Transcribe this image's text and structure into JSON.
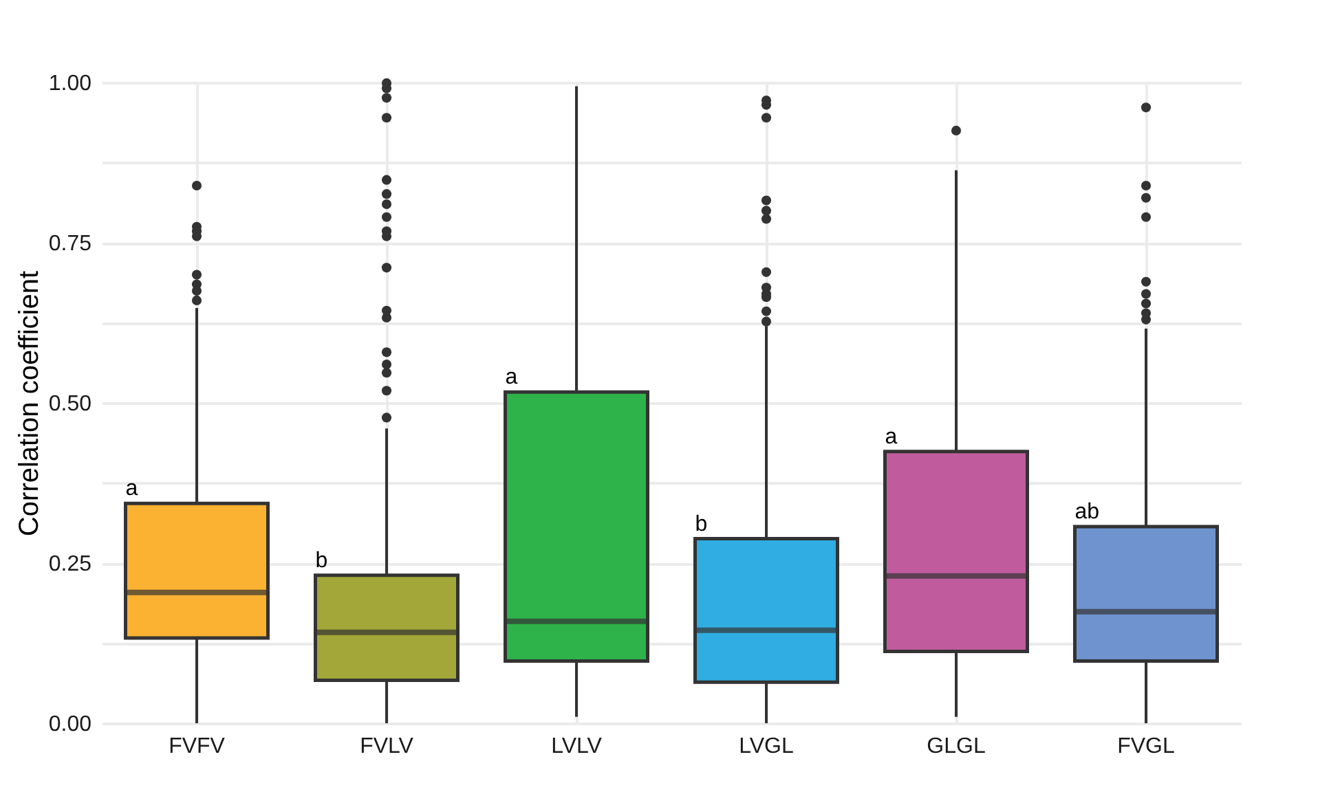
{
  "chart_data": {
    "type": "box",
    "ylabel": "Correlation coefficient",
    "categories": [
      "FVFV",
      "FVLV",
      "LVLV",
      "LVGL",
      "GLGL",
      "FVGL"
    ],
    "colors": [
      "#fbb131",
      "#a3a638",
      "#2db34a",
      "#30ade2",
      "#c05c9e",
      "#6e93cf"
    ],
    "boxes": [
      {
        "low": 0,
        "q1": 0.133,
        "median": 0.204,
        "q3": 0.343,
        "high": 0.648,
        "outliers": [
          0.839,
          0.775,
          0.768,
          0.76,
          0.7,
          0.685,
          0.675,
          0.66
        ]
      },
      {
        "low": 0,
        "q1": 0.067,
        "median": 0.142,
        "q3": 0.231,
        "high": 0.46,
        "outliers": [
          0.999,
          0.991,
          0.976,
          0.945,
          0.848,
          0.826,
          0.81,
          0.79,
          0.768,
          0.76,
          0.711,
          0.644,
          0.633,
          0.579,
          0.56,
          0.547,
          0.519,
          0.477
        ]
      },
      {
        "low": 0.01,
        "q1": 0.097,
        "median": 0.159,
        "q3": 0.517,
        "high": 0.994
      },
      {
        "low": 0,
        "q1": 0.064,
        "median": 0.145,
        "q3": 0.288,
        "high": 0.62,
        "outliers": [
          0.972,
          0.965,
          0.945,
          0.816,
          0.8,
          0.787,
          0.704,
          0.68,
          0.67,
          0.665,
          0.643,
          0.627
        ]
      },
      {
        "low": 0.01,
        "q1": 0.112,
        "median": 0.23,
        "q3": 0.424,
        "high": 0.863,
        "outliers": [
          0.925
        ]
      },
      {
        "low": 0,
        "q1": 0.097,
        "median": 0.174,
        "q3": 0.307,
        "high": 0.616,
        "outliers": [
          0.961,
          0.839,
          0.82,
          0.79,
          0.689,
          0.67,
          0.655,
          0.64,
          0.63
        ]
      }
    ],
    "ylim": [
      0,
      1
    ],
    "yticks": [
      {
        "value": 0,
        "label": "0.00"
      },
      {
        "value": 0.125,
        "label": null
      },
      {
        "value": 0.25,
        "label": "0.25"
      },
      {
        "value": 0.375,
        "label": null
      },
      {
        "value": 0.5,
        "label": "0.50"
      },
      {
        "value": 0.625,
        "label": null
      },
      {
        "value": 0.75,
        "label": "0.75"
      },
      {
        "value": 0.875,
        "label": null
      },
      {
        "value": 1,
        "label": "1.00"
      }
    ],
    "grid": true,
    "annotations": [
      {
        "text": "a",
        "x": "FVFV",
        "y": 0.343
      },
      {
        "text": "b",
        "x": "FVLV",
        "y": 0.231
      },
      {
        "text": "a",
        "x": "LVLV",
        "y": 0.517
      },
      {
        "text": "b",
        "x": "LVGL",
        "y": 0.288
      },
      {
        "text": "a",
        "x": "GLGL",
        "y": 0.424
      },
      {
        "text": "ab",
        "x": "FVGL",
        "y": 0.307
      }
    ]
  }
}
